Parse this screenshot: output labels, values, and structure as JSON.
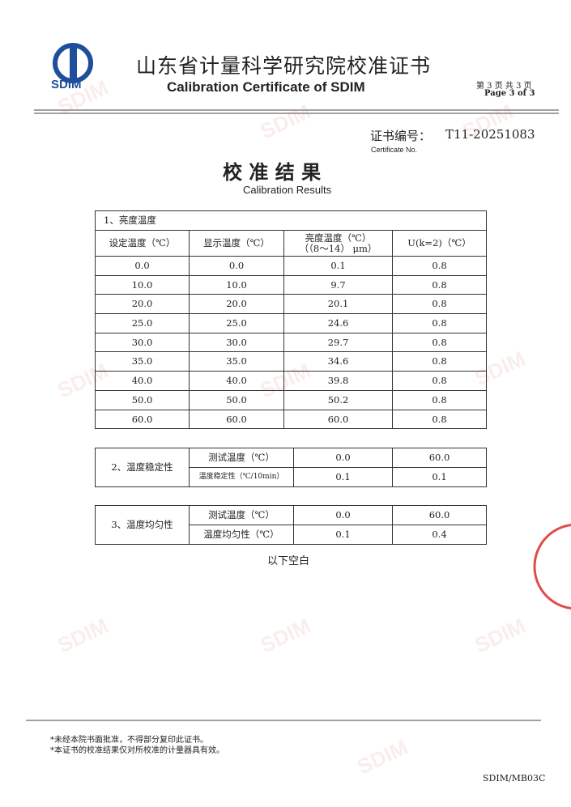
{
  "header": {
    "logo_text": "SDIM",
    "title_cn": "山东省计量科学研究院校准证书",
    "title_en": "Calibration Certificate of SDIM",
    "page_cn": "第 3 页 共 3 页",
    "page_en": "Page 3 of 3"
  },
  "certificate": {
    "label_cn": "证书编号：",
    "value": "T11-20251083",
    "label_en": "Certificate No."
  },
  "section": {
    "title_cn": "校 准 结 果",
    "title_en": "Calibration Results"
  },
  "table1": {
    "title": "1、亮度温度",
    "headers": [
      "设定温度（℃）",
      "显示温度（℃）",
      [
        "亮度温度（℃）",
        "（（8～14） μm）"
      ],
      "U(k=2)（℃）"
    ],
    "rows": [
      [
        "0.0",
        "0.0",
        "0.1",
        "0.8"
      ],
      [
        "10.0",
        "10.0",
        "9.7",
        "0.8"
      ],
      [
        "20.0",
        "20.0",
        "20.1",
        "0.8"
      ],
      [
        "25.0",
        "25.0",
        "24.6",
        "0.8"
      ],
      [
        "30.0",
        "30.0",
        "29.7",
        "0.8"
      ],
      [
        "35.0",
        "35.0",
        "34.6",
        "0.8"
      ],
      [
        "40.0",
        "40.0",
        "39.8",
        "0.8"
      ],
      [
        "50.0",
        "50.0",
        "50.2",
        "0.8"
      ],
      [
        "60.0",
        "60.0",
        "60.0",
        "0.8"
      ]
    ]
  },
  "table2": {
    "label": "2、温度稳定性",
    "rows": [
      [
        "测试温度（℃）",
        "0.0",
        "60.0"
      ],
      [
        "温度稳定性（℃/10min）",
        "0.1",
        "0.1"
      ]
    ]
  },
  "table3": {
    "label": "3、温度均匀性",
    "rows": [
      [
        "测试温度（℃）",
        "0.0",
        "60.0"
      ],
      [
        "温度均匀性（℃）",
        "0.1",
        "0.4"
      ]
    ]
  },
  "blank_note": "以下空白",
  "footer": {
    "notes": [
      "*未经本院书面批准，不得部分复印此证书。",
      "*本证书的校准结果仅对所校准的计量器具有效。"
    ],
    "code": "SDIM/MB03C"
  },
  "watermark": "SDIM"
}
